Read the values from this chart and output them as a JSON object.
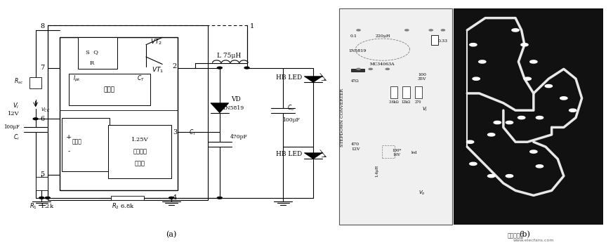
{
  "title": "",
  "bg_color": "#ffffff",
  "fig_width": 8.73,
  "fig_height": 3.49,
  "dpi": 100,
  "label_a": "(a)",
  "label_b": "(b)",
  "watermark": "电子发烧友",
  "watermark2": "www.elecfans.com"
}
